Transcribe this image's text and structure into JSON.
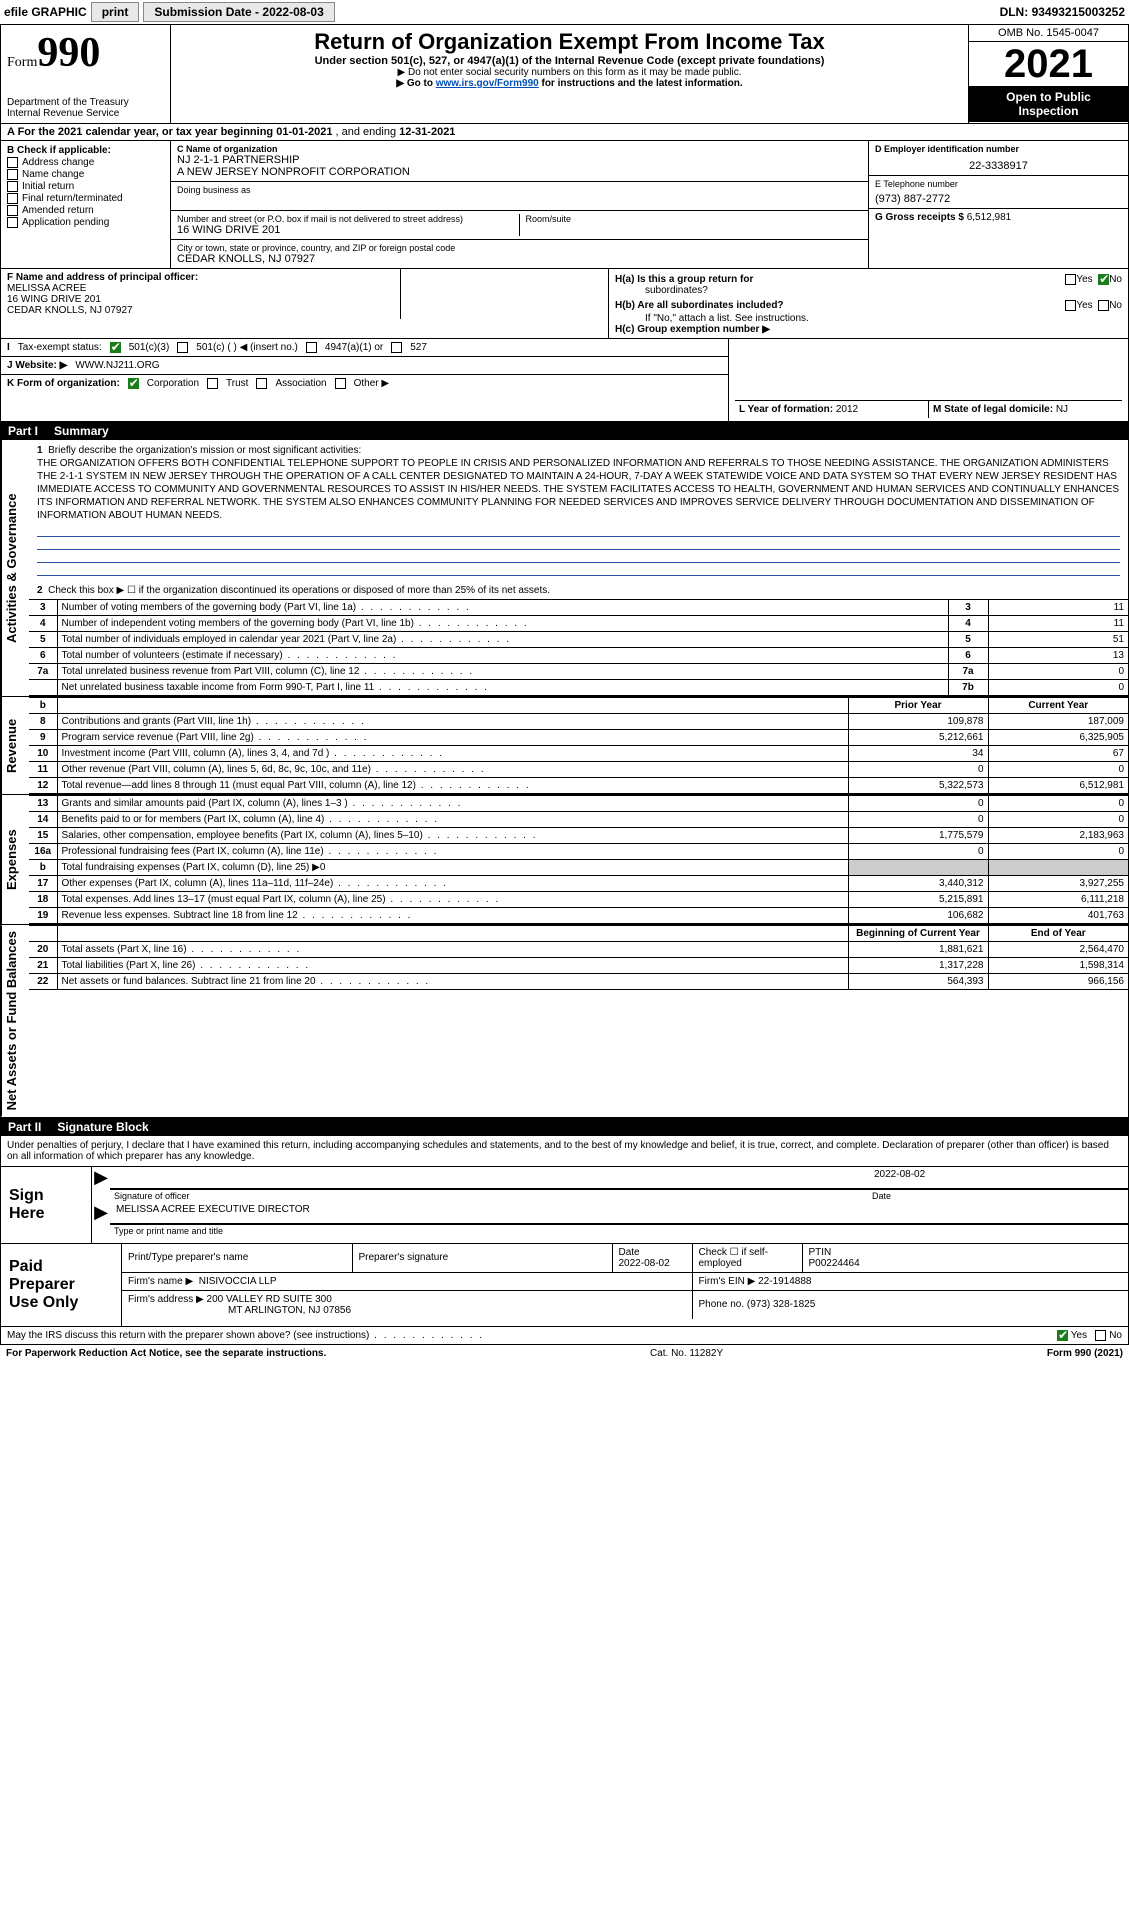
{
  "topbar": {
    "efile": "efile GRAPHIC",
    "print": "print",
    "subdate_lbl": "Submission Date - ",
    "subdate": "2022-08-03",
    "dln_lbl": "DLN: ",
    "dln": "93493215003252"
  },
  "header": {
    "form_word": "Form",
    "form_num": "990",
    "dept": "Department of the Treasury",
    "irs": "Internal Revenue Service",
    "title": "Return of Organization Exempt From Income Tax",
    "sub1": "Under section 501(c), 527, or 4947(a)(1) of the Internal Revenue Code (except private foundations)",
    "sub2_pre": "▶ Do not enter social security numbers on this form as it may be made public.",
    "sub3_pre": "▶ Go to ",
    "sub3_link": "www.irs.gov/Form990",
    "sub3_post": " for instructions and the latest information.",
    "omb": "OMB No. 1545-0047",
    "year": "2021",
    "open1": "Open to Public",
    "open2": "Inspection"
  },
  "rowA": {
    "text": "A For the 2021 calendar year, or tax year beginning ",
    "begin": "01-01-2021",
    "mid": " , and ending ",
    "end": "12-31-2021"
  },
  "B": {
    "title": "B Check if applicable:",
    "items": [
      "Address change",
      "Name change",
      "Initial return",
      "Final return/terminated",
      "Amended return",
      "Application pending"
    ]
  },
  "C": {
    "name_lbl": "C Name of organization",
    "name1": "NJ 2-1-1 PARTNERSHIP",
    "name2": "A NEW JERSEY NONPROFIT CORPORATION",
    "dba_lbl": "Doing business as",
    "addr_lbl": "Number and street (or P.O. box if mail is not delivered to street address)",
    "room_lbl": "Room/suite",
    "addr": "16 WING DRIVE 201",
    "city_lbl": "City or town, state or province, country, and ZIP or foreign postal code",
    "city": "CEDAR KNOLLS, NJ  07927"
  },
  "D": {
    "lbl": "D Employer identification number",
    "val": "22-3338917"
  },
  "E": {
    "lbl": "E Telephone number",
    "val": "(973) 887-2772"
  },
  "G": {
    "lbl": "G Gross receipts $ ",
    "val": "6,512,981"
  },
  "F": {
    "lbl": "F  Name and address of principal officer:",
    "l1": "MELISSA ACREE",
    "l2": "16 WING DRIVE 201",
    "l3": "CEDAR KNOLLS, NJ  07927"
  },
  "H": {
    "a_lbl": "H(a)  Is this a group return for",
    "a_sub": "subordinates?",
    "b_lbl": "H(b)  Are all subordinates included?",
    "b_note": "If \"No,\" attach a list. See instructions.",
    "c_lbl": "H(c)  Group exemption number ▶",
    "yes": "Yes",
    "no": "No"
  },
  "I": {
    "lbl": "Tax-exempt status:",
    "o1": "501(c)(3)",
    "o2": "501(c) (  ) ◀ (insert no.)",
    "o3": "4947(a)(1) or",
    "o4": "527"
  },
  "J": {
    "lbl": "J   Website: ▶",
    "val": "WWW.NJ211.ORG"
  },
  "K": {
    "lbl": "K Form of organization:",
    "o1": "Corporation",
    "o2": "Trust",
    "o3": "Association",
    "o4": "Other ▶"
  },
  "L": {
    "lbl": "L Year of formation: ",
    "val": "2012"
  },
  "M": {
    "lbl": "M State of legal domicile: ",
    "val": "NJ"
  },
  "part1": {
    "part": "Part I",
    "title": "Summary"
  },
  "part2": {
    "part": "Part II",
    "title": "Signature Block"
  },
  "vtabs": {
    "act": "Activities & Governance",
    "rev": "Revenue",
    "exp": "Expenses",
    "net": "Net Assets or Fund Balances"
  },
  "summary": {
    "l1_lbl": "Briefly describe the organization's mission or most significant activities:",
    "l1_text": "THE ORGANIZATION OFFERS BOTH CONFIDENTIAL TELEPHONE SUPPORT TO PEOPLE IN CRISIS AND PERSONALIZED INFORMATION AND REFERRALS TO THOSE NEEDING ASSISTANCE. THE ORGANIZATION ADMINISTERS THE 2-1-1 SYSTEM IN NEW JERSEY THROUGH THE OPERATION OF A CALL CENTER DESIGNATED TO MAINTAIN A 24-HOUR, 7-DAY A WEEK STATEWIDE VOICE AND DATA SYSTEM SO THAT EVERY NEW JERSEY RESIDENT HAS IMMEDIATE ACCESS TO COMMUNITY AND GOVERNMENTAL RESOURCES TO ASSIST IN HIS/HER NEEDS. THE SYSTEM FACILITATES ACCESS TO HEALTH, GOVERNMENT AND HUMAN SERVICES AND CONTINUALLY ENHANCES ITS INFORMATION AND REFERRAL NETWORK. THE SYSTEM ALSO ENHANCES COMMUNITY PLANNING FOR NEEDED SERVICES AND IMPROVES SERVICE DELIVERY THROUGH DOCUMENTATION AND DISSEMINATION OF INFORMATION ABOUT HUMAN NEEDS.",
    "l2": "Check this box ▶ ☐  if the organization discontinued its operations or disposed of more than 25% of its net assets."
  },
  "act_rows": [
    {
      "n": "3",
      "t": "Number of voting members of the governing body (Part VI, line 1a)",
      "b": "3",
      "v": "11"
    },
    {
      "n": "4",
      "t": "Number of independent voting members of the governing body (Part VI, line 1b)",
      "b": "4",
      "v": "11"
    },
    {
      "n": "5",
      "t": "Total number of individuals employed in calendar year 2021 (Part V, line 2a)",
      "b": "5",
      "v": "51"
    },
    {
      "n": "6",
      "t": "Total number of volunteers (estimate if necessary)",
      "b": "6",
      "v": "13"
    },
    {
      "n": "7a",
      "t": "Total unrelated business revenue from Part VIII, column (C), line 12",
      "b": "7a",
      "v": "0"
    },
    {
      "n": "",
      "t": "Net unrelated business taxable income from Form 990-T, Part I, line 11",
      "b": "7b",
      "v": "0"
    }
  ],
  "col_hdr": {
    "b": "b",
    "py": "Prior Year",
    "cy": "Current Year"
  },
  "rev_rows": [
    {
      "n": "8",
      "t": "Contributions and grants (Part VIII, line 1h)",
      "py": "109,878",
      "cy": "187,009"
    },
    {
      "n": "9",
      "t": "Program service revenue (Part VIII, line 2g)",
      "py": "5,212,661",
      "cy": "6,325,905"
    },
    {
      "n": "10",
      "t": "Investment income (Part VIII, column (A), lines 3, 4, and 7d )",
      "py": "34",
      "cy": "67"
    },
    {
      "n": "11",
      "t": "Other revenue (Part VIII, column (A), lines 5, 6d, 8c, 9c, 10c, and 11e)",
      "py": "0",
      "cy": "0"
    },
    {
      "n": "12",
      "t": "Total revenue—add lines 8 through 11 (must equal Part VIII, column (A), line 12)",
      "py": "5,322,573",
      "cy": "6,512,981"
    }
  ],
  "exp_rows": [
    {
      "n": "13",
      "t": "Grants and similar amounts paid (Part IX, column (A), lines 1–3 )",
      "py": "0",
      "cy": "0"
    },
    {
      "n": "14",
      "t": "Benefits paid to or for members (Part IX, column (A), line 4)",
      "py": "0",
      "cy": "0"
    },
    {
      "n": "15",
      "t": "Salaries, other compensation, employee benefits (Part IX, column (A), lines 5–10)",
      "py": "1,775,579",
      "cy": "2,183,963"
    },
    {
      "n": "16a",
      "t": "Professional fundraising fees (Part IX, column (A), line 11e)",
      "py": "0",
      "cy": "0"
    },
    {
      "n": "b",
      "t": "Total fundraising expenses (Part IX, column (D), line 25) ▶0",
      "py": "",
      "cy": "",
      "shade": true
    },
    {
      "n": "17",
      "t": "Other expenses (Part IX, column (A), lines 11a–11d, 11f–24e)",
      "py": "3,440,312",
      "cy": "3,927,255"
    },
    {
      "n": "18",
      "t": "Total expenses. Add lines 13–17 (must equal Part IX, column (A), line 25)",
      "py": "5,215,891",
      "cy": "6,111,218"
    },
    {
      "n": "19",
      "t": "Revenue less expenses. Subtract line 18 from line 12",
      "py": "106,682",
      "cy": "401,763"
    }
  ],
  "net_hdr": {
    "py": "Beginning of Current Year",
    "cy": "End of Year"
  },
  "net_rows": [
    {
      "n": "20",
      "t": "Total assets (Part X, line 16)",
      "py": "1,881,621",
      "cy": "2,564,470"
    },
    {
      "n": "21",
      "t": "Total liabilities (Part X, line 26)",
      "py": "1,317,228",
      "cy": "1,598,314"
    },
    {
      "n": "22",
      "t": "Net assets or fund balances. Subtract line 21 from line 20",
      "py": "564,393",
      "cy": "966,156"
    }
  ],
  "sig": {
    "intro": "Under penalties of perjury, I declare that I have examined this return, including accompanying schedules and statements, and to the best of my knowledge and belief, it is true, correct, and complete. Declaration of preparer (other than officer) is based on all information of which preparer has any knowledge.",
    "sign": "Sign",
    "here": "Here",
    "sig_of": "Signature of officer",
    "date_lbl": "Date",
    "date": "2022-08-02",
    "name": "MELISSA ACREE  EXECUTIVE DIRECTOR",
    "name_lbl": "Type or print name and title"
  },
  "paid": {
    "l1": "Paid",
    "l2": "Preparer",
    "l3": "Use Only",
    "h1": "Print/Type preparer's name",
    "h2": "Preparer's signature",
    "h3": "Date",
    "h3v": "2022-08-02",
    "h4": "Check ☐ if self-employed",
    "h5_lbl": "PTIN",
    "h5": "P00224464",
    "firm_lbl": "Firm's name    ▶",
    "firm": "NISIVOCCIA LLP",
    "ein_lbl": "Firm's EIN ▶ ",
    "ein": "22-1914888",
    "addr_lbl": "Firm's address ▶",
    "addr1": "200 VALLEY RD SUITE 300",
    "addr2": "MT ARLINGTON, NJ  07856",
    "phone_lbl": "Phone no. ",
    "phone": "(973) 328-1825"
  },
  "may": {
    "q": "May the IRS discuss this return with the preparer shown above? (see instructions)",
    "yes": "Yes",
    "no": "No"
  },
  "footer": {
    "l": "For Paperwork Reduction Act Notice, see the separate instructions.",
    "m": "Cat. No. 11282Y",
    "r": "Form 990 (2021)"
  }
}
